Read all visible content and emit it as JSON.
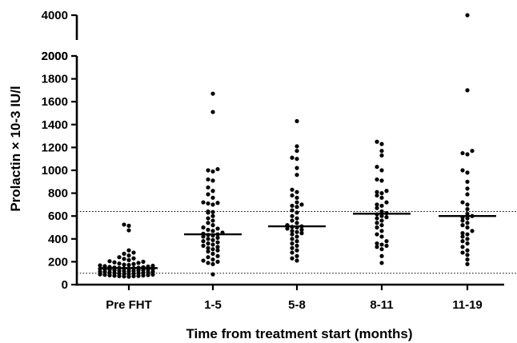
{
  "chart_data": {
    "type": "scatter",
    "subtype": "dot-plot-with-median",
    "title": "",
    "xlabel": "Time from treatment start (months)",
    "ylabel": "Prolactin × 10-3 IU/l",
    "y_axis": "broken",
    "y_segments": [
      {
        "range": [
          0,
          2000
        ],
        "ticks": [
          "0",
          "200",
          "400",
          "600",
          "800",
          "1000",
          "1200",
          "1400",
          "1600",
          "1800",
          "2000"
        ]
      },
      {
        "range": [
          2000,
          4000
        ],
        "ticks": [
          "2000",
          "4000"
        ]
      }
    ],
    "reference_lines": [
      100,
      640
    ],
    "categories": [
      "Pre FHT",
      "1-5",
      "5-8",
      "8-11",
      "11-19"
    ],
    "series": [
      {
        "median": 145,
        "values": [
          525,
          515,
          475,
          300,
          280,
          270,
          255,
          240,
          230,
          225,
          215,
          205,
          200,
          195,
          190,
          185,
          180,
          175,
          172,
          168,
          165,
          162,
          158,
          155,
          152,
          150,
          148,
          146,
          144,
          142,
          140,
          138,
          136,
          134,
          132,
          130,
          128,
          126,
          124,
          122,
          120,
          118,
          116,
          114,
          112,
          110,
          108,
          106,
          104,
          102,
          100,
          98,
          96,
          94,
          92,
          90,
          88,
          86,
          84,
          82,
          80,
          78,
          76,
          75,
          74,
          72,
          70
        ]
      },
      {
        "median": 440,
        "values": [
          1670,
          1510,
          1010,
          1000,
          990,
          920,
          910,
          850,
          820,
          790,
          760,
          720,
          715,
          710,
          700,
          640,
          635,
          630,
          600,
          580,
          560,
          540,
          520,
          500,
          490,
          480,
          470,
          455,
          445,
          440,
          435,
          430,
          420,
          410,
          400,
          390,
          380,
          370,
          360,
          350,
          340,
          330,
          320,
          310,
          300,
          290,
          270,
          250,
          240,
          220,
          210,
          200,
          190,
          180,
          90
        ]
      },
      {
        "median": 510,
        "values": [
          1430,
          1210,
          1170,
          1110,
          1100,
          1020,
          960,
          830,
          810,
          780,
          760,
          720,
          700,
          690,
          680,
          650,
          630,
          600,
          580,
          560,
          540,
          520,
          510,
          505,
          500,
          490,
          480,
          470,
          460,
          450,
          440,
          420,
          400,
          380,
          360,
          340,
          320,
          300,
          280,
          250,
          230,
          210
        ]
      },
      {
        "median": 620,
        "values": [
          1250,
          1230,
          1170,
          1130,
          1030,
          1000,
          920,
          910,
          820,
          810,
          800,
          780,
          760,
          720,
          700,
          690,
          670,
          640,
          625,
          615,
          600,
          590,
          580,
          560,
          540,
          520,
          500,
          470,
          440,
          420,
          380,
          360,
          350,
          340,
          330,
          310,
          250,
          190
        ]
      },
      {
        "median": 600,
        "values": [
          4000,
          1700,
          1170,
          1150,
          1140,
          1000,
          980,
          900,
          840,
          790,
          720,
          700,
          660,
          620,
          600,
          590,
          580,
          560,
          540,
          520,
          500,
          470,
          450,
          440,
          420,
          400,
          380,
          360,
          330,
          300,
          280,
          260,
          220,
          180
        ]
      }
    ]
  }
}
